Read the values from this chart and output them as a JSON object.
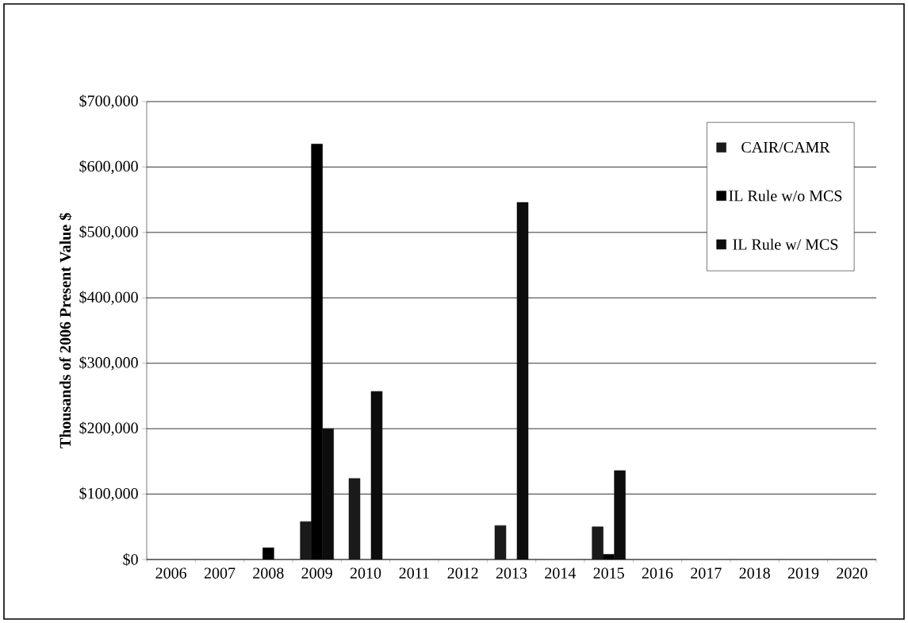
{
  "chart_data": {
    "type": "bar",
    "ylabel": "Thousands of 2006 Present Value $",
    "categories": [
      "2006",
      "2007",
      "2008",
      "2009",
      "2010",
      "2011",
      "2012",
      "2013",
      "2014",
      "2015",
      "2016",
      "2017",
      "2018",
      "2019",
      "2020"
    ],
    "series": [
      {
        "name": "CAIR/CAMR",
        "color": "#1a1a1a",
        "values": [
          null,
          null,
          null,
          58000,
          124000,
          null,
          null,
          52000,
          null,
          50000,
          null,
          null,
          null,
          null,
          null
        ]
      },
      {
        "name": "IL Rule w/o MCS",
        "color": "#000000",
        "values": [
          null,
          null,
          18000,
          635000,
          null,
          null,
          null,
          null,
          null,
          8000,
          null,
          null,
          null,
          null,
          null
        ]
      },
      {
        "name": "IL Rule w/ MCS",
        "color": "#0d0d0d",
        "values": [
          null,
          null,
          null,
          200000,
          257000,
          null,
          null,
          546000,
          null,
          136000,
          null,
          null,
          null,
          null,
          null
        ]
      }
    ],
    "ylim": [
      0,
      700000
    ],
    "yticks": [
      {
        "value": 0,
        "label": "$0"
      },
      {
        "value": 100000,
        "label": "$100,000"
      },
      {
        "value": 200000,
        "label": "$200,000"
      },
      {
        "value": 300000,
        "label": "$300,000"
      },
      {
        "value": 400000,
        "label": "$400,000"
      },
      {
        "value": 500000,
        "label": "$500,000"
      },
      {
        "value": 600000,
        "label": "$600,000"
      },
      {
        "value": 700000,
        "label": "$700,000"
      }
    ],
    "grid": "y",
    "legend": "top right"
  }
}
